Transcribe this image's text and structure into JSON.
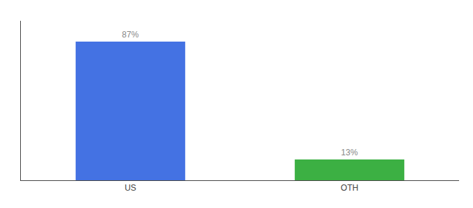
{
  "chart_data": {
    "type": "bar",
    "categories": [
      "US",
      "OTH"
    ],
    "values": [
      87,
      13
    ],
    "value_labels": [
      "87%",
      "13%"
    ],
    "colors": [
      "#4472E3",
      "#3CB043"
    ],
    "ylim": [
      0,
      100
    ],
    "data_labels": true,
    "tick_labels": "x",
    "grid": false
  }
}
